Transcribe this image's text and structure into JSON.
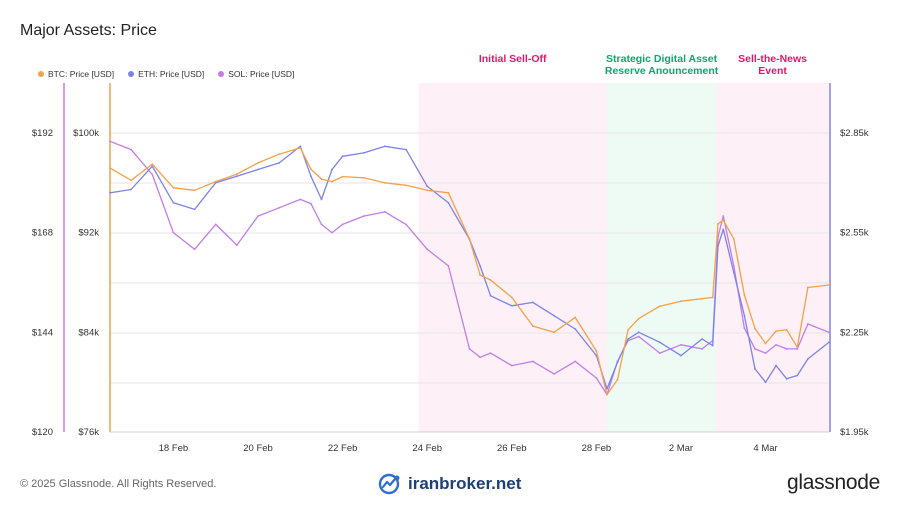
{
  "title": "Major Assets: Price",
  "footer": {
    "copyright": "© 2025 Glassnode. All Rights Reserved.",
    "watermark": "iranbroker.net",
    "brand": "glassnode"
  },
  "colors": {
    "btc": "#f4a14a",
    "eth": "#7b83eb",
    "sol": "#c37de8",
    "sell_off_band": "#fdf0f6",
    "reserve_band": "#eefaf4",
    "sell_off_label": "#e6176b",
    "reserve_label": "#0fa86b",
    "grid": "#e6e6e6"
  },
  "chart_data": {
    "type": "line",
    "title": "Major Assets: Price",
    "x_ticks": [
      "18 Feb",
      "20 Feb",
      "22 Feb",
      "24 Feb",
      "26 Feb",
      "28 Feb",
      "2 Mar",
      "4 Mar"
    ],
    "xlim": [
      "2025-02-16T12:00",
      "2025-03-05T12:00"
    ],
    "axes": {
      "sol": {
        "ticks": [
          "$192",
          "$168",
          "$144",
          "$120"
        ],
        "ylim": [
          120,
          192
        ],
        "position": "left-outer"
      },
      "btc": {
        "ticks": [
          "$100k",
          "$92k",
          "$84k",
          "$76k"
        ],
        "ylim": [
          76000,
          100000
        ],
        "position": "left-inner"
      },
      "eth": {
        "ticks": [
          "$2.85k",
          "$2.55k",
          "$2.25k",
          "$1.95k"
        ],
        "ylim": [
          1950,
          2850
        ],
        "position": "right"
      }
    },
    "legend": "top-left",
    "grid": true,
    "annotations": [
      {
        "label_lines": [
          "Initial Sell-Off"
        ],
        "start": "2025-02-23T19:00",
        "end": "2025-02-28T06:00",
        "tone": "sell_off"
      },
      {
        "label_lines": [
          "Strategic Digital Asset",
          "Reserve Anouncement"
        ],
        "start": "2025-02-28T06:00",
        "end": "2025-03-02T20:00",
        "tone": "reserve"
      },
      {
        "label_lines": [
          "Sell-the-News",
          "Event"
        ],
        "start": "2025-03-02T20:00",
        "end": "2025-03-05T12:00",
        "tone": "sell_off"
      }
    ],
    "series": [
      {
        "name": "BTC: Price [USD]",
        "key": "btc",
        "axis": "btc",
        "x": [
          "2025-02-16T12:00",
          "2025-02-17T00:00",
          "2025-02-17T12:00",
          "2025-02-18T00:00",
          "2025-02-18T12:00",
          "2025-02-19T00:00",
          "2025-02-19T12:00",
          "2025-02-20T00:00",
          "2025-02-20T12:00",
          "2025-02-21T00:00",
          "2025-02-21T06:00",
          "2025-02-21T12:00",
          "2025-02-21T18:00",
          "2025-02-22T00:00",
          "2025-02-22T12:00",
          "2025-02-23T00:00",
          "2025-02-23T12:00",
          "2025-02-24T00:00",
          "2025-02-24T12:00",
          "2025-02-25T00:00",
          "2025-02-25T06:00",
          "2025-02-25T12:00",
          "2025-02-26T00:00",
          "2025-02-26T12:00",
          "2025-02-27T00:00",
          "2025-02-27T12:00",
          "2025-02-28T00:00",
          "2025-02-28T06:00",
          "2025-02-28T12:00",
          "2025-02-28T18:00",
          "2025-03-01T00:00",
          "2025-03-01T12:00",
          "2025-03-02T00:00",
          "2025-03-02T12:00",
          "2025-03-02T18:00",
          "2025-03-02T21:00",
          "2025-03-03T00:00",
          "2025-03-03T06:00",
          "2025-03-03T12:00",
          "2025-03-03T18:00",
          "2025-03-04T00:00",
          "2025-03-04T06:00",
          "2025-03-04T12:00",
          "2025-03-04T18:00",
          "2025-03-05T00:00",
          "2025-03-05T12:00"
        ],
        "values": [
          97200,
          96200,
          97500,
          95600,
          95400,
          96100,
          96700,
          97600,
          98300,
          98800,
          97100,
          96300,
          96100,
          96500,
          96400,
          96000,
          95800,
          95400,
          95200,
          91500,
          88600,
          88200,
          86800,
          84500,
          84000,
          85200,
          82500,
          79000,
          80200,
          84200,
          85100,
          86100,
          86500,
          86700,
          86800,
          92700,
          93000,
          91500,
          87000,
          84300,
          83100,
          84100,
          84200,
          82800,
          87600,
          87800
        ]
      },
      {
        "name": "ETH: Price [USD]",
        "key": "eth",
        "axis": "eth",
        "x": [
          "2025-02-16T12:00",
          "2025-02-17T00:00",
          "2025-02-17T12:00",
          "2025-02-18T00:00",
          "2025-02-18T12:00",
          "2025-02-19T00:00",
          "2025-02-19T12:00",
          "2025-02-20T00:00",
          "2025-02-20T12:00",
          "2025-02-21T00:00",
          "2025-02-21T06:00",
          "2025-02-21T12:00",
          "2025-02-21T18:00",
          "2025-02-22T00:00",
          "2025-02-22T12:00",
          "2025-02-23T00:00",
          "2025-02-23T12:00",
          "2025-02-24T00:00",
          "2025-02-24T12:00",
          "2025-02-25T00:00",
          "2025-02-25T06:00",
          "2025-02-25T12:00",
          "2025-02-26T00:00",
          "2025-02-26T12:00",
          "2025-02-27T00:00",
          "2025-02-27T12:00",
          "2025-02-28T00:00",
          "2025-02-28T06:00",
          "2025-02-28T12:00",
          "2025-02-28T18:00",
          "2025-03-01T00:00",
          "2025-03-01T12:00",
          "2025-03-02T00:00",
          "2025-03-02T12:00",
          "2025-03-02T18:00",
          "2025-03-02T21:00",
          "2025-03-03T00:00",
          "2025-03-03T06:00",
          "2025-03-03T12:00",
          "2025-03-03T18:00",
          "2025-03-04T00:00",
          "2025-03-04T06:00",
          "2025-03-04T12:00",
          "2025-03-04T18:00",
          "2025-03-05T00:00",
          "2025-03-05T12:00"
        ],
        "values": [
          2670,
          2680,
          2750,
          2640,
          2620,
          2700,
          2720,
          2740,
          2760,
          2810,
          2720,
          2650,
          2740,
          2780,
          2790,
          2810,
          2800,
          2690,
          2640,
          2530,
          2450,
          2360,
          2330,
          2340,
          2300,
          2260,
          2180,
          2080,
          2160,
          2230,
          2250,
          2220,
          2180,
          2230,
          2210,
          2510,
          2560,
          2430,
          2300,
          2140,
          2100,
          2150,
          2110,
          2120,
          2170,
          2220
        ]
      },
      {
        "name": "SOL: Price [USD]",
        "key": "sol",
        "axis": "sol",
        "x": [
          "2025-02-16T12:00",
          "2025-02-17T00:00",
          "2025-02-17T12:00",
          "2025-02-18T00:00",
          "2025-02-18T12:00",
          "2025-02-19T00:00",
          "2025-02-19T12:00",
          "2025-02-20T00:00",
          "2025-02-20T12:00",
          "2025-02-21T00:00",
          "2025-02-21T06:00",
          "2025-02-21T12:00",
          "2025-02-21T18:00",
          "2025-02-22T00:00",
          "2025-02-22T12:00",
          "2025-02-23T00:00",
          "2025-02-23T12:00",
          "2025-02-24T00:00",
          "2025-02-24T12:00",
          "2025-02-25T00:00",
          "2025-02-25T06:00",
          "2025-02-25T12:00",
          "2025-02-26T00:00",
          "2025-02-26T12:00",
          "2025-02-27T00:00",
          "2025-02-27T12:00",
          "2025-02-28T00:00",
          "2025-02-28T06:00",
          "2025-02-28T12:00",
          "2025-02-28T18:00",
          "2025-03-01T00:00",
          "2025-03-01T12:00",
          "2025-03-02T00:00",
          "2025-03-02T12:00",
          "2025-03-02T18:00",
          "2025-03-02T21:00",
          "2025-03-03T00:00",
          "2025-03-03T06:00",
          "2025-03-03T12:00",
          "2025-03-03T18:00",
          "2025-03-04T00:00",
          "2025-03-04T06:00",
          "2025-03-04T12:00",
          "2025-03-04T18:00",
          "2025-03-05T00:00",
          "2025-03-05T12:00"
        ],
        "values": [
          190,
          188,
          182,
          168,
          164,
          170,
          165,
          172,
          174,
          176,
          175,
          170,
          168,
          170,
          172,
          173,
          170,
          164,
          160,
          140,
          138,
          139,
          136,
          137,
          134,
          137,
          133,
          129,
          137,
          142,
          143,
          139,
          141,
          140,
          142,
          167,
          172,
          160,
          145,
          140,
          139,
          141,
          140,
          140,
          146,
          144
        ]
      }
    ]
  }
}
